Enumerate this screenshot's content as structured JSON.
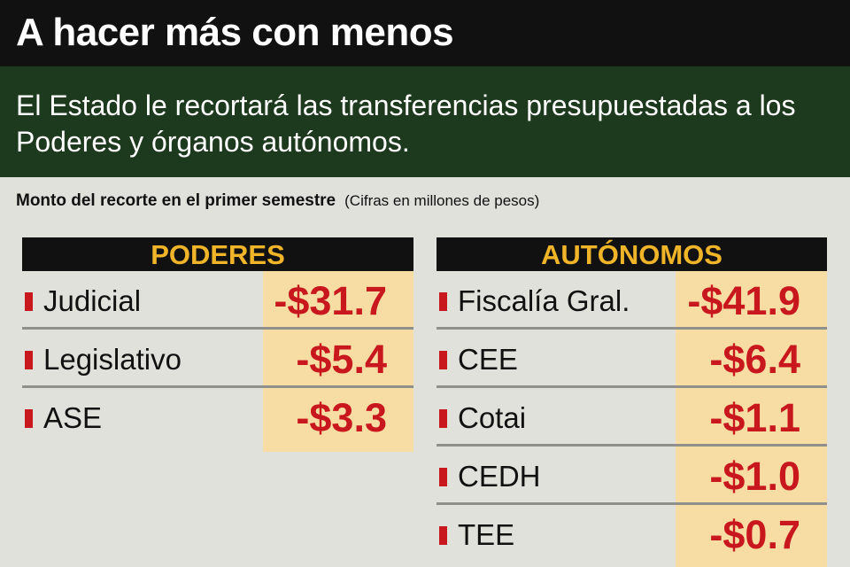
{
  "header": {
    "title": "A hacer más con menos",
    "subtitle": "El Estado le recortará las transferencias presupuestadas a los Poderes y órganos autónomos."
  },
  "caption": {
    "main": "Monto del recorte en el primer semestre",
    "note": "(Cifras en millones de pesos)"
  },
  "colors": {
    "title_bg": "#111111",
    "subtitle_bg": "#1e3a1e",
    "panel_header_text": "#f0b429",
    "value_highlight": "#f7dda3",
    "value_text": "#c8181e",
    "marker": "#c8181e"
  },
  "chart_data": [
    {
      "type": "table",
      "title": "PODERES",
      "columns": [
        "",
        ""
      ],
      "rows": [
        {
          "label": "Judicial",
          "display": "-$31.7",
          "value": -31.7
        },
        {
          "label": "Legislativo",
          "display": "-$5.4",
          "value": -5.4
        },
        {
          "label": "ASE",
          "display": "-$3.3",
          "value": -3.3
        }
      ]
    },
    {
      "type": "table",
      "title": "AUTÓNOMOS",
      "columns": [
        "",
        ""
      ],
      "rows": [
        {
          "label": "Fiscalía Gral.",
          "display": "-$41.9",
          "value": -41.9
        },
        {
          "label": "CEE",
          "display": "-$6.4",
          "value": -6.4
        },
        {
          "label": "Cotai",
          "display": "-$1.1",
          "value": -1.1
        },
        {
          "label": "CEDH",
          "display": "-$1.0",
          "value": -1.0
        },
        {
          "label": "TEE",
          "display": "-$0.7",
          "value": -0.7
        }
      ]
    }
  ]
}
